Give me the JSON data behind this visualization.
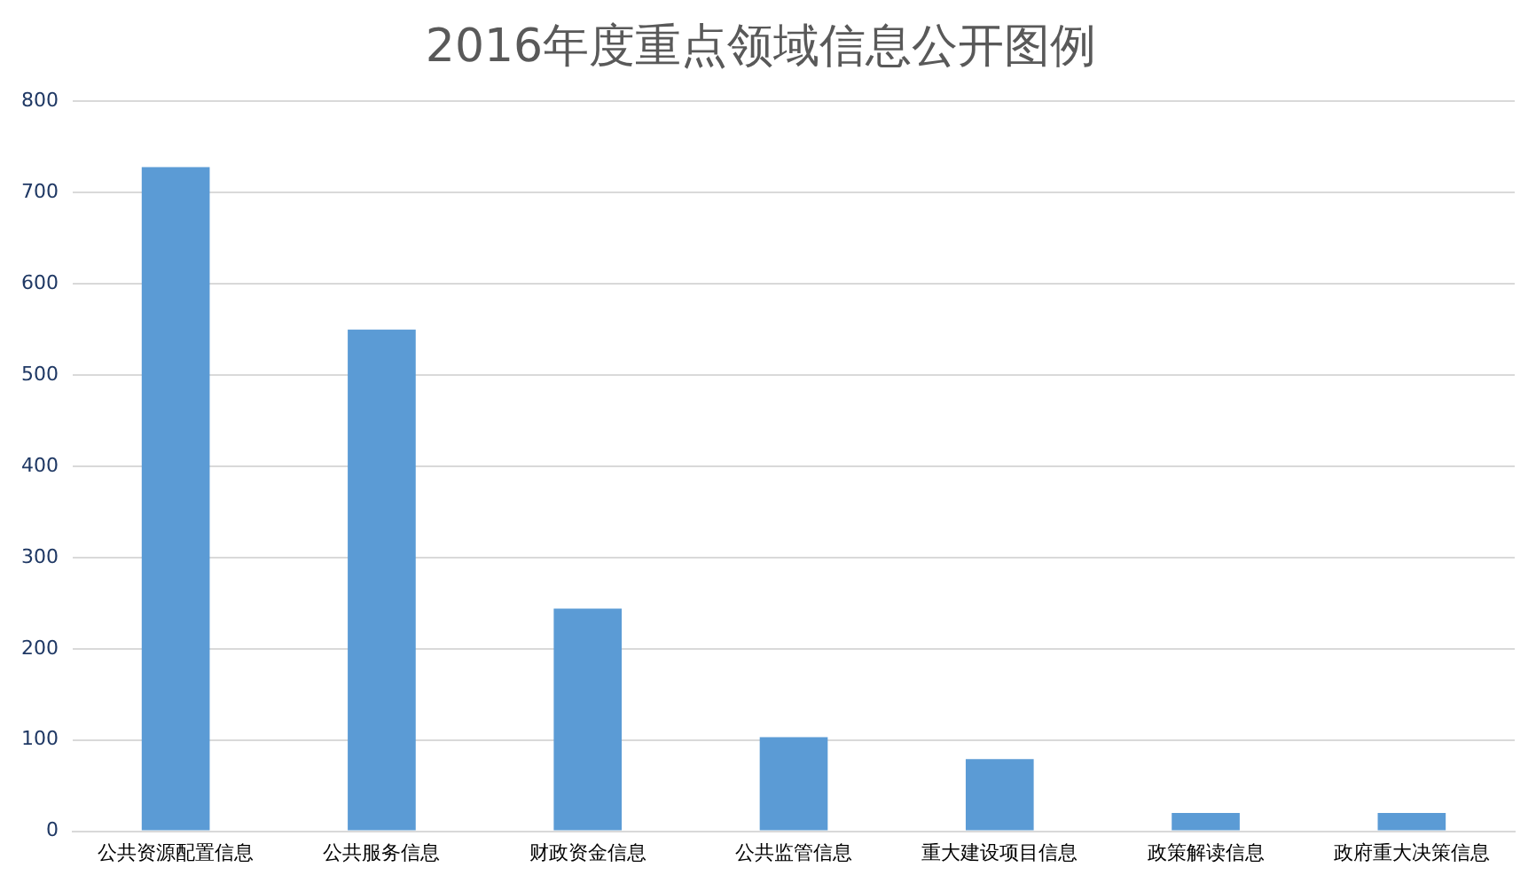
{
  "chart_data": {
    "type": "bar",
    "title": "2016年度重点领域信息公开图例",
    "categories": [
      "公共资源配置信息",
      "公共服务信息",
      "财政资金信息",
      "公共监管信息",
      "重大建设项目信息",
      "政策解读信息",
      "政府重大决策信息"
    ],
    "values": [
      728,
      550,
      244,
      103,
      79,
      20,
      20
    ],
    "color": "#5b9bd5",
    "ylim": [
      0,
      800
    ],
    "yticks": [
      0,
      100,
      200,
      300,
      400,
      500,
      600,
      700,
      800
    ],
    "grid": "y",
    "legend": false
  }
}
